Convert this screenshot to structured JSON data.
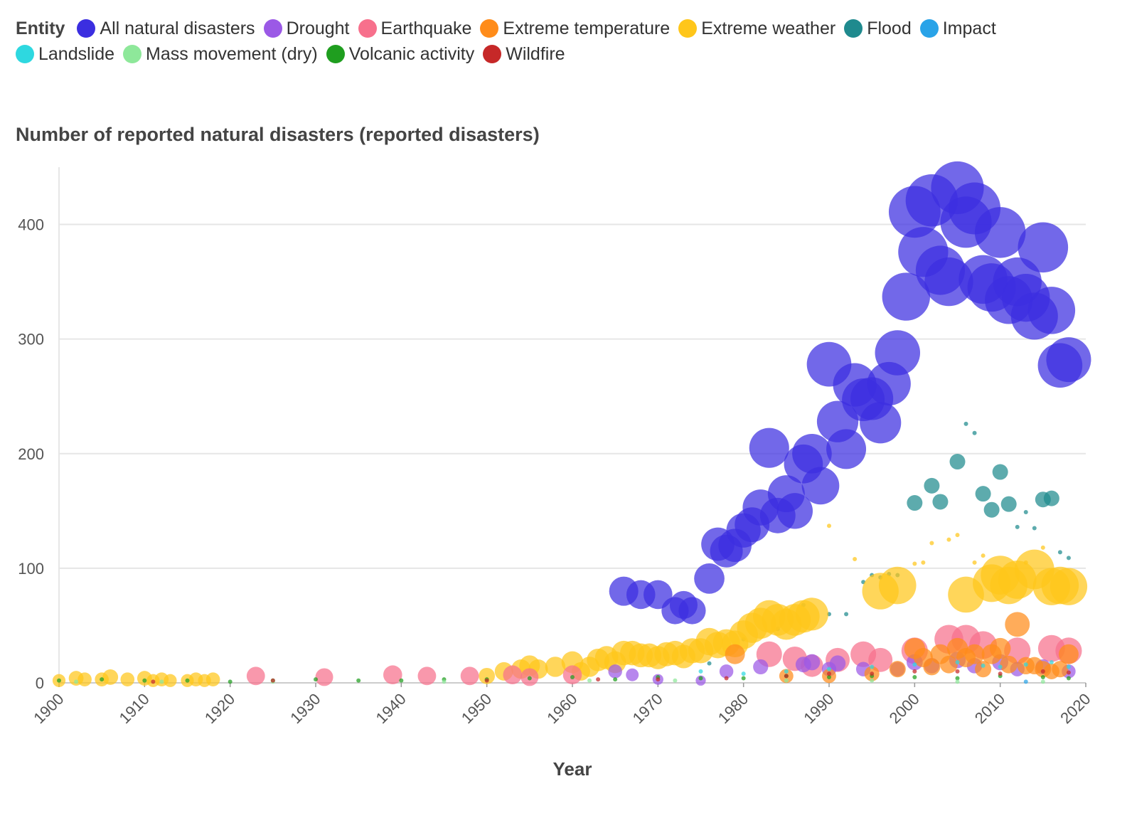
{
  "legend": {
    "title": "Entity",
    "items": [
      {
        "name": "All natural disasters",
        "color": "#3b2ee0"
      },
      {
        "name": "Drought",
        "color": "#9b59e6"
      },
      {
        "name": "Earthquake",
        "color": "#f7708c"
      },
      {
        "name": "Extreme temperature",
        "color": "#ff8c1a"
      },
      {
        "name": "Extreme weather",
        "color": "#ffc61a"
      },
      {
        "name": "Flood",
        "color": "#1f8a8e"
      },
      {
        "name": "Impact",
        "color": "#29a3e8"
      },
      {
        "name": "Landslide",
        "color": "#2ed8e0"
      },
      {
        "name": "Mass movement (dry)",
        "color": "#8ee89a"
      },
      {
        "name": "Volcanic activity",
        "color": "#1f9e1f"
      },
      {
        "name": "Wildfire",
        "color": "#c62828"
      }
    ]
  },
  "chart_data": {
    "type": "scatter",
    "title": "Number of reported natural disasters (reported disasters)",
    "xlabel": "Year",
    "ylabel": "",
    "xlim": [
      1900,
      2020
    ],
    "ylim": [
      0,
      450
    ],
    "x_ticks": [
      "1900",
      "1910",
      "1920",
      "1930",
      "1940",
      "1950",
      "1960",
      "1970",
      "1980",
      "1990",
      "2000",
      "2010",
      "2020"
    ],
    "y_ticks": [
      "0",
      "100",
      "200",
      "300",
      "400"
    ],
    "grid": true,
    "legend_position": "top",
    "series": [
      {
        "name": "All natural disasters",
        "points": [
          [
            1966,
            80
          ],
          [
            1968,
            77
          ],
          [
            1970,
            77
          ],
          [
            1972,
            63
          ],
          [
            1973,
            68
          ],
          [
            1974,
            63
          ],
          [
            1976,
            91
          ],
          [
            1977,
            121
          ],
          [
            1978,
            115
          ],
          [
            1979,
            120
          ],
          [
            1980,
            133
          ],
          [
            1981,
            138
          ],
          [
            1982,
            153
          ],
          [
            1983,
            205
          ],
          [
            1984,
            146
          ],
          [
            1985,
            165
          ],
          [
            1986,
            150
          ],
          [
            1987,
            191
          ],
          [
            1988,
            200
          ],
          [
            1989,
            172
          ],
          [
            1990,
            278
          ],
          [
            1991,
            228
          ],
          [
            1992,
            204
          ],
          [
            1993,
            260
          ],
          [
            1994,
            247
          ],
          [
            1995,
            248
          ],
          [
            1996,
            227
          ],
          [
            1997,
            261
          ],
          [
            1998,
            288
          ],
          [
            1999,
            337
          ],
          [
            2000,
            411
          ],
          [
            2001,
            376
          ],
          [
            2002,
            421
          ],
          [
            2003,
            360
          ],
          [
            2004,
            350
          ],
          [
            2005,
            432
          ],
          [
            2006,
            402
          ],
          [
            2007,
            414
          ],
          [
            2008,
            352
          ],
          [
            2009,
            345
          ],
          [
            2010,
            393
          ],
          [
            2011,
            334
          ],
          [
            2012,
            350
          ],
          [
            2013,
            336
          ],
          [
            2014,
            320
          ],
          [
            2015,
            380
          ],
          [
            2016,
            325
          ],
          [
            2017,
            277
          ],
          [
            2018,
            282
          ]
        ]
      },
      {
        "name": "Flood",
        "points": [
          [
            1976,
            17
          ],
          [
            1980,
            38
          ],
          [
            1984,
            47
          ],
          [
            1987,
            68
          ],
          [
            1990,
            60
          ],
          [
            1992,
            60
          ],
          [
            1994,
            88
          ],
          [
            1995,
            94
          ],
          [
            1996,
            92
          ],
          [
            1997,
            95
          ],
          [
            1998,
            94
          ],
          [
            2000,
            157
          ],
          [
            2002,
            172
          ],
          [
            2003,
            158
          ],
          [
            2005,
            193
          ],
          [
            2006,
            226
          ],
          [
            2007,
            218
          ],
          [
            2008,
            165
          ],
          [
            2009,
            151
          ],
          [
            2010,
            184
          ],
          [
            2011,
            156
          ],
          [
            2012,
            136
          ],
          [
            2013,
            149
          ],
          [
            2014,
            135
          ],
          [
            2015,
            160
          ],
          [
            2016,
            161
          ],
          [
            2017,
            114
          ],
          [
            2018,
            109
          ]
        ]
      },
      {
        "name": "Extreme weather",
        "points": [
          [
            1900,
            2
          ],
          [
            1902,
            4
          ],
          [
            1903,
            3
          ],
          [
            1905,
            3
          ],
          [
            1906,
            5
          ],
          [
            1908,
            3
          ],
          [
            1910,
            4
          ],
          [
            1911,
            2
          ],
          [
            1912,
            3
          ],
          [
            1913,
            2
          ],
          [
            1915,
            2
          ],
          [
            1916,
            3
          ],
          [
            1917,
            2
          ],
          [
            1918,
            3
          ],
          [
            1950,
            6
          ],
          [
            1952,
            10
          ],
          [
            1954,
            12
          ],
          [
            1955,
            15
          ],
          [
            1956,
            12
          ],
          [
            1958,
            14
          ],
          [
            1960,
            18
          ],
          [
            1961,
            10
          ],
          [
            1962,
            14
          ],
          [
            1963,
            20
          ],
          [
            1964,
            22
          ],
          [
            1965,
            18
          ],
          [
            1966,
            26
          ],
          [
            1967,
            26
          ],
          [
            1968,
            24
          ],
          [
            1969,
            24
          ],
          [
            1970,
            22
          ],
          [
            1971,
            25
          ],
          [
            1972,
            26
          ],
          [
            1973,
            23
          ],
          [
            1974,
            28
          ],
          [
            1975,
            28
          ],
          [
            1976,
            36
          ],
          [
            1977,
            33
          ],
          [
            1978,
            35
          ],
          [
            1979,
            34
          ],
          [
            1980,
            42
          ],
          [
            1981,
            48
          ],
          [
            1982,
            52
          ],
          [
            1983,
            58
          ],
          [
            1984,
            55
          ],
          [
            1985,
            51
          ],
          [
            1986,
            55
          ],
          [
            1987,
            58
          ],
          [
            1988,
            60
          ],
          [
            1990,
            137
          ],
          [
            1993,
            108
          ],
          [
            1996,
            80
          ],
          [
            1998,
            85
          ],
          [
            2000,
            104
          ],
          [
            2001,
            105
          ],
          [
            2002,
            122
          ],
          [
            2004,
            125
          ],
          [
            2005,
            129
          ],
          [
            2006,
            77
          ],
          [
            2007,
            105
          ],
          [
            2008,
            111
          ],
          [
            2009,
            87
          ],
          [
            2010,
            94
          ],
          [
            2011,
            85
          ],
          [
            2012,
            90
          ],
          [
            2013,
            105
          ],
          [
            2014,
            99
          ],
          [
            2015,
            118
          ],
          [
            2016,
            84
          ],
          [
            2017,
            85
          ],
          [
            2018,
            84
          ]
        ]
      },
      {
        "name": "Earthquake",
        "points": [
          [
            1923,
            6
          ],
          [
            1931,
            5
          ],
          [
            1939,
            7
          ],
          [
            1943,
            6
          ],
          [
            1948,
            6
          ],
          [
            1953,
            7
          ],
          [
            1955,
            5
          ],
          [
            1960,
            7
          ],
          [
            1983,
            25
          ],
          [
            1986,
            21
          ],
          [
            1988,
            15
          ],
          [
            1991,
            20
          ],
          [
            1994,
            25
          ],
          [
            1996,
            20
          ],
          [
            2000,
            28
          ],
          [
            2004,
            38
          ],
          [
            2006,
            38
          ],
          [
            2008,
            33
          ],
          [
            2012,
            28
          ],
          [
            2016,
            30
          ],
          [
            2018,
            28
          ]
        ]
      },
      {
        "name": "Drought",
        "points": [
          [
            1965,
            10
          ],
          [
            1967,
            7
          ],
          [
            1970,
            3
          ],
          [
            1975,
            2
          ],
          [
            1978,
            10
          ],
          [
            1982,
            14
          ],
          [
            1987,
            16
          ],
          [
            1988,
            18
          ],
          [
            1990,
            12
          ],
          [
            1991,
            17
          ],
          [
            1994,
            12
          ],
          [
            1998,
            12
          ],
          [
            2000,
            18
          ],
          [
            2002,
            15
          ],
          [
            2005,
            20
          ],
          [
            2007,
            15
          ],
          [
            2010,
            18
          ],
          [
            2012,
            12
          ],
          [
            2015,
            14
          ],
          [
            2018,
            10
          ]
        ]
      },
      {
        "name": "Extreme temperature",
        "points": [
          [
            1979,
            25
          ],
          [
            1985,
            6
          ],
          [
            1990,
            6
          ],
          [
            1995,
            8
          ],
          [
            1998,
            12
          ],
          [
            2000,
            30
          ],
          [
            2001,
            22
          ],
          [
            2002,
            14
          ],
          [
            2003,
            25
          ],
          [
            2004,
            16
          ],
          [
            2005,
            30
          ],
          [
            2006,
            22
          ],
          [
            2007,
            25
          ],
          [
            2008,
            12
          ],
          [
            2009,
            25
          ],
          [
            2010,
            30
          ],
          [
            2011,
            16
          ],
          [
            2012,
            51
          ],
          [
            2013,
            15
          ],
          [
            2014,
            15
          ],
          [
            2015,
            12
          ],
          [
            2016,
            10
          ],
          [
            2017,
            12
          ],
          [
            2018,
            25
          ]
        ]
      },
      {
        "name": "Landslide",
        "points": [
          [
            1975,
            10
          ],
          [
            1980,
            8
          ],
          [
            1985,
            10
          ],
          [
            1990,
            12
          ],
          [
            1995,
            14
          ],
          [
            2000,
            16
          ],
          [
            2005,
            18
          ],
          [
            2008,
            15
          ],
          [
            2010,
            14
          ],
          [
            2013,
            16
          ],
          [
            2016,
            18
          ],
          [
            2018,
            14
          ]
        ]
      },
      {
        "name": "Volcanic activity",
        "points": [
          [
            1900,
            2
          ],
          [
            1905,
            3
          ],
          [
            1910,
            2
          ],
          [
            1915,
            2
          ],
          [
            1920,
            1
          ],
          [
            1925,
            2
          ],
          [
            1930,
            3
          ],
          [
            1935,
            2
          ],
          [
            1940,
            2
          ],
          [
            1945,
            3
          ],
          [
            1950,
            3
          ],
          [
            1955,
            4
          ],
          [
            1960,
            5
          ],
          [
            1965,
            3
          ],
          [
            1970,
            5
          ],
          [
            1975,
            4
          ],
          [
            1980,
            4
          ],
          [
            1985,
            6
          ],
          [
            1990,
            5
          ],
          [
            1995,
            6
          ],
          [
            2000,
            5
          ],
          [
            2005,
            4
          ],
          [
            2010,
            6
          ],
          [
            2015,
            5
          ],
          [
            2018,
            4
          ]
        ]
      },
      {
        "name": "Mass movement (dry)",
        "points": [
          [
            1902,
            1
          ],
          [
            1912,
            1
          ],
          [
            1925,
            1
          ],
          [
            1945,
            1
          ],
          [
            1962,
            2
          ],
          [
            1972,
            2
          ],
          [
            1985,
            2
          ],
          [
            1995,
            2
          ],
          [
            2005,
            1
          ],
          [
            2015,
            1
          ]
        ]
      },
      {
        "name": "Wildfire",
        "points": [
          [
            1911,
            1
          ],
          [
            1925,
            2
          ],
          [
            1950,
            2
          ],
          [
            1963,
            3
          ],
          [
            1970,
            3
          ],
          [
            1978,
            4
          ],
          [
            1985,
            6
          ],
          [
            1990,
            8
          ],
          [
            1995,
            8
          ],
          [
            2000,
            10
          ],
          [
            2005,
            10
          ],
          [
            2010,
            8
          ],
          [
            2015,
            10
          ],
          [
            2018,
            9
          ]
        ]
      },
      {
        "name": "Impact",
        "points": [
          [
            2013,
            1
          ]
        ]
      }
    ]
  }
}
